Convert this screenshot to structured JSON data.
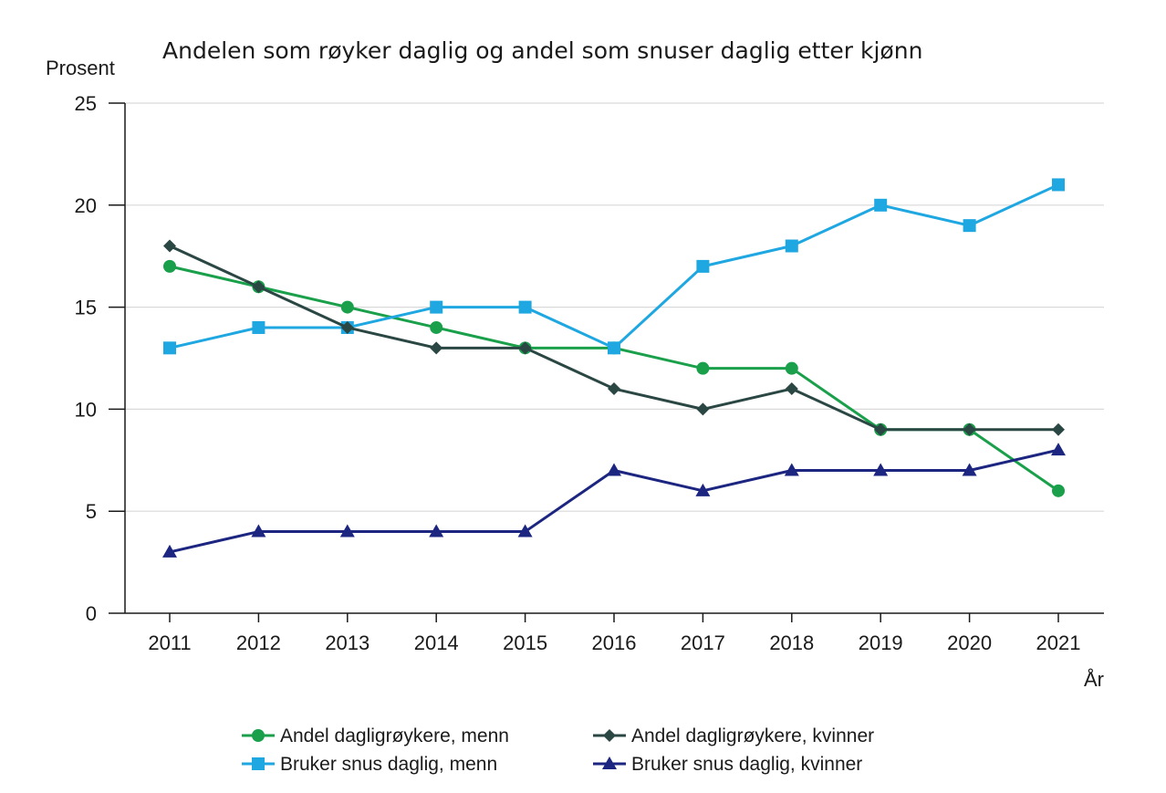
{
  "chart_data": {
    "type": "line",
    "title": "Andelen som røyker daglig og andel som snuser daglig etter kjønn",
    "ylabel": "Prosent",
    "xlabel": "År",
    "ylim": [
      0,
      25
    ],
    "yticks": [
      0,
      5,
      10,
      15,
      20,
      25
    ],
    "grid": true,
    "legend_position": "bottom",
    "x": [
      "2011",
      "2012",
      "2013",
      "2014",
      "2015",
      "2016",
      "2017",
      "2018",
      "2019",
      "2020",
      "2021"
    ],
    "series": [
      {
        "name": "Andel dagligrøykere, menn",
        "color": "#1aa04b",
        "marker": "circle",
        "values": [
          17,
          16,
          15,
          14,
          13,
          13,
          12,
          12,
          9,
          9,
          6
        ]
      },
      {
        "name": "Bruker snus daglig, menn",
        "color": "#1fa7e1",
        "marker": "square",
        "values": [
          13,
          14,
          14,
          15,
          15,
          13,
          17,
          18,
          20,
          19,
          21
        ]
      },
      {
        "name": "Andel dagligrøykere, kvinner",
        "color": "#2b4744",
        "marker": "diamond",
        "values": [
          18,
          16,
          14,
          13,
          13,
          11,
          10,
          11,
          9,
          9,
          9
        ]
      },
      {
        "name": "Bruker snus daglig, kvinner",
        "color": "#1c2680",
        "marker": "triangle",
        "values": [
          3,
          4,
          4,
          4,
          4,
          7,
          6,
          7,
          7,
          7,
          8
        ]
      }
    ]
  }
}
